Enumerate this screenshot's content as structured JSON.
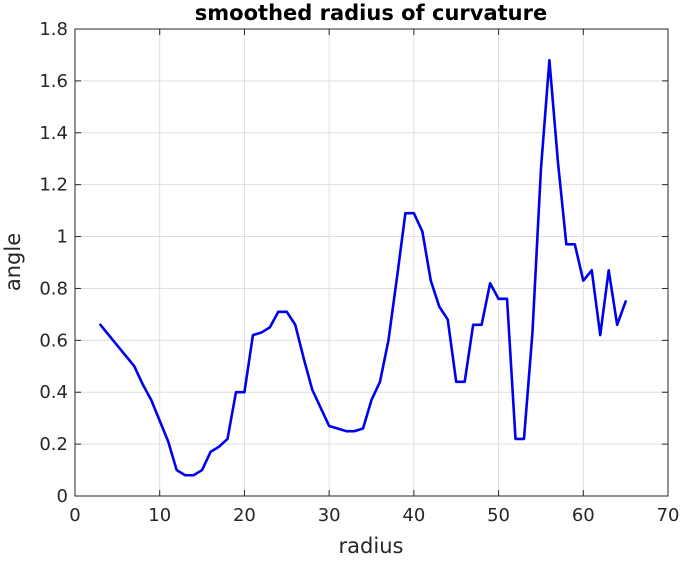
{
  "chart_data": {
    "type": "line",
    "title": "smoothed radius of curvature",
    "xlabel": "radius",
    "ylabel": "angle",
    "xlim": [
      0,
      70
    ],
    "ylim": [
      0,
      1.8
    ],
    "xticks": [
      0,
      10,
      20,
      30,
      40,
      50,
      60,
      70
    ],
    "yticks": [
      0,
      0.2,
      0.4,
      0.6,
      0.8,
      1,
      1.2,
      1.4,
      1.6,
      1.8
    ],
    "xtick_labels": [
      "0",
      "10",
      "20",
      "30",
      "40",
      "50",
      "60",
      "70"
    ],
    "ytick_labels": [
      "0",
      "0.2",
      "0.4",
      "0.6",
      "0.8",
      "1",
      "1.2",
      "1.4",
      "1.6",
      "1.8"
    ],
    "grid": true,
    "line_color": "#0000ee",
    "series": [
      {
        "x": [
          3,
          4,
          5,
          6,
          7,
          8,
          9,
          10,
          11,
          12,
          13,
          14,
          15,
          16,
          17,
          18,
          19,
          20,
          21,
          22,
          23,
          24,
          25,
          26,
          27,
          28,
          29,
          30,
          31,
          32,
          33,
          34,
          35,
          36,
          37,
          38,
          39,
          40,
          41,
          42,
          43,
          44,
          45,
          46,
          47,
          48,
          49,
          50,
          51,
          52,
          53,
          54,
          55,
          56,
          57,
          58,
          59,
          60,
          61,
          62,
          63,
          64,
          65
        ],
        "y": [
          0.66,
          0.62,
          0.58,
          0.54,
          0.5,
          0.43,
          0.37,
          0.29,
          0.21,
          0.1,
          0.08,
          0.08,
          0.1,
          0.17,
          0.19,
          0.22,
          0.4,
          0.4,
          0.62,
          0.63,
          0.65,
          0.71,
          0.71,
          0.66,
          0.53,
          0.41,
          0.34,
          0.27,
          0.26,
          0.25,
          0.25,
          0.26,
          0.37,
          0.44,
          0.6,
          0.84,
          1.09,
          1.09,
          1.02,
          0.83,
          0.73,
          0.68,
          0.44,
          0.44,
          0.66,
          0.66,
          0.82,
          0.76,
          0.76,
          0.22,
          0.22,
          0.63,
          1.26,
          1.68,
          1.29,
          0.97,
          0.97,
          0.83,
          0.87,
          0.62,
          0.87,
          0.66,
          0.75
        ]
      }
    ]
  }
}
